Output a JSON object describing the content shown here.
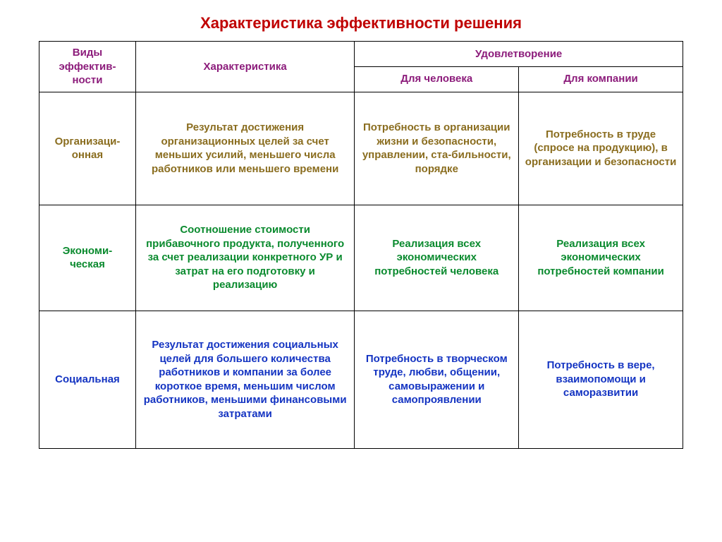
{
  "title": "Характеристика эффективности решения",
  "colors": {
    "title": "#c00000",
    "header": "#8c1c7b",
    "row1": "#8a6d1f",
    "row2": "#0a8a2e",
    "row3": "#1434c2"
  },
  "headers": {
    "types": "Виды эффектив-ности",
    "characteristic": "Характеристика",
    "satisfaction": "Удовлетворение",
    "person": "Для человека",
    "company": "Для компании"
  },
  "rows": [
    {
      "type": "Организаци-онная",
      "characteristic": "Результат достижения организационных целей за счет меньших усилий, меньшего числа работников или меньшего времени",
      "person": "Потребность в организации жизни и безопасности, управлении, ста-бильности, порядке",
      "company": "Потребность в труде (спросе на продукцию), в организации и безопасности"
    },
    {
      "type": "Экономи-ческая",
      "characteristic": "Соотношение стоимости прибавочного продукта, полученного за счет реализации конкретного УР и затрат на его подготовку и реализацию",
      "person": "Реализация всех экономических потребностей человека",
      "company": "Реализация всех экономических потребностей компании"
    },
    {
      "type": "Социальная",
      "characteristic": "Результат достижения социальных целей для большего количества работников и компании за более короткое время, меньшим числом работников, меньшими финансовыми затратами",
      "person": "Потребность в творческом труде, любви, общении, самовыражении и самопроявлении",
      "company": "Потребность в вере, взаимопомощи и саморазвитии"
    }
  ],
  "table_style": {
    "border_color": "#000000",
    "border_width": 1.5,
    "background": "#ffffff",
    "font_family": "Arial",
    "header_fontsize": 15,
    "cell_fontsize": 15,
    "title_fontsize": 22
  }
}
